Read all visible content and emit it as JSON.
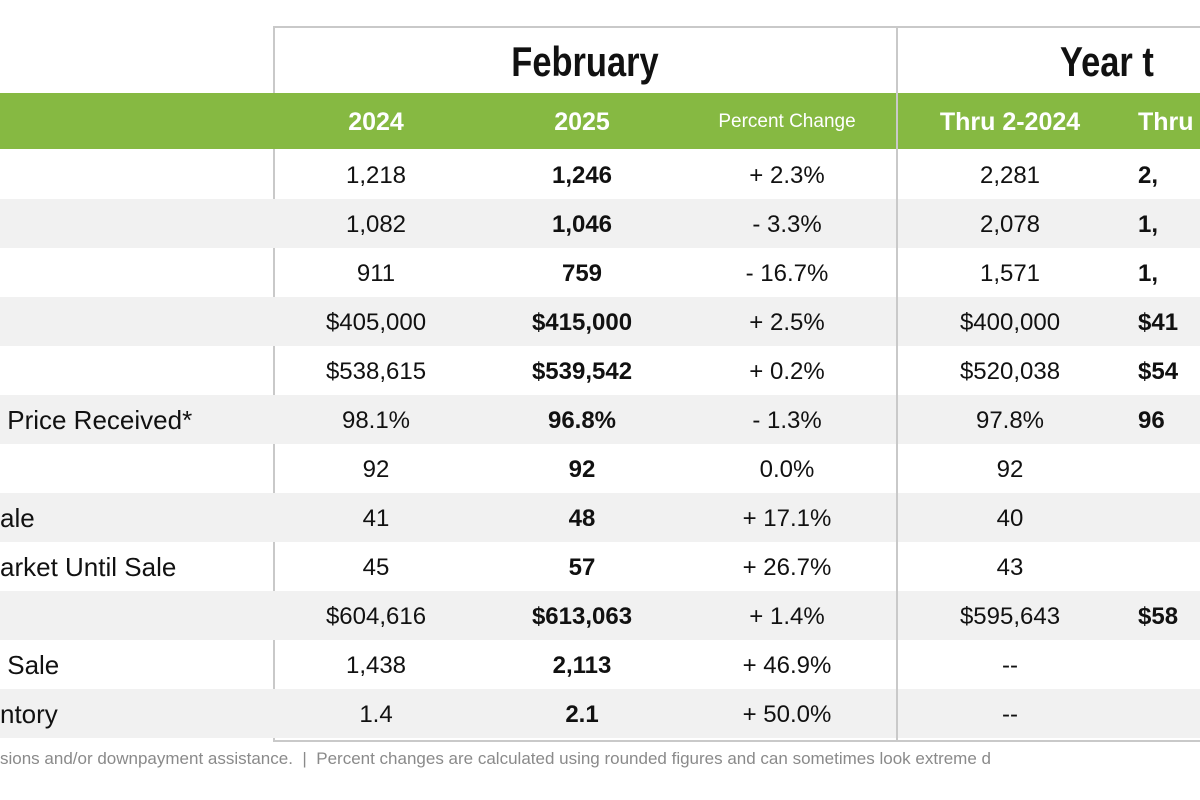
{
  "groups": {
    "month": "February",
    "ytd": "Year t"
  },
  "headers": {
    "c1": "2024",
    "c2": "2025",
    "c3": "Percent Change",
    "c4": "Thru 2-2024",
    "c5": "Thru"
  },
  "colors": {
    "accent": "#86b942",
    "stripe": "#f1f1f1"
  },
  "rows": [
    {
      "label": "",
      "c1": "1,218",
      "c2": "1,246",
      "c3": "+ 2.3%",
      "c4": "2,281",
      "c5": "2,"
    },
    {
      "label": "",
      "c1": "1,082",
      "c2": "1,046",
      "c3": "- 3.3%",
      "c4": "2,078",
      "c5": "1,"
    },
    {
      "label": "",
      "c1": "911",
      "c2": "759",
      "c3": "- 16.7%",
      "c4": "1,571",
      "c5": "1,"
    },
    {
      "label": "",
      "c1": "$405,000",
      "c2": "$415,000",
      "c3": "+ 2.5%",
      "c4": "$400,000",
      "c5": "$41"
    },
    {
      "label": "",
      "c1": "$538,615",
      "c2": "$539,542",
      "c3": "+ 0.2%",
      "c4": "$520,038",
      "c5": "$54"
    },
    {
      "label": " Price Received*",
      "c1": "98.1%",
      "c2": "96.8%",
      "c3": "- 1.3%",
      "c4": "97.8%",
      "c5": "96"
    },
    {
      "label": "",
      "c1": "92",
      "c2": "92",
      "c3": "0.0%",
      "c4": "92",
      "c5": ""
    },
    {
      "label": "ale",
      "c1": "41",
      "c2": "48",
      "c3": "+ 17.1%",
      "c4": "40",
      "c5": ""
    },
    {
      "label": "arket Until Sale",
      "c1": "45",
      "c2": "57",
      "c3": "+ 26.7%",
      "c4": "43",
      "c5": ""
    },
    {
      "label": "",
      "c1": "$604,616",
      "c2": "$613,063",
      "c3": "+ 1.4%",
      "c4": "$595,643",
      "c5": "$58"
    },
    {
      "label": " Sale",
      "c1": "1,438",
      "c2": "2,113",
      "c3": "+ 46.9%",
      "c4": "--",
      "c5": ""
    },
    {
      "label": "ntory",
      "c1": "1.4",
      "c2": "2.1",
      "c3": "+ 50.0%",
      "c4": "--",
      "c5": ""
    }
  ],
  "footer": "sions and/or downpayment assistance.  |  Percent changes are calculated using rounded figures and can sometimes look extreme d"
}
